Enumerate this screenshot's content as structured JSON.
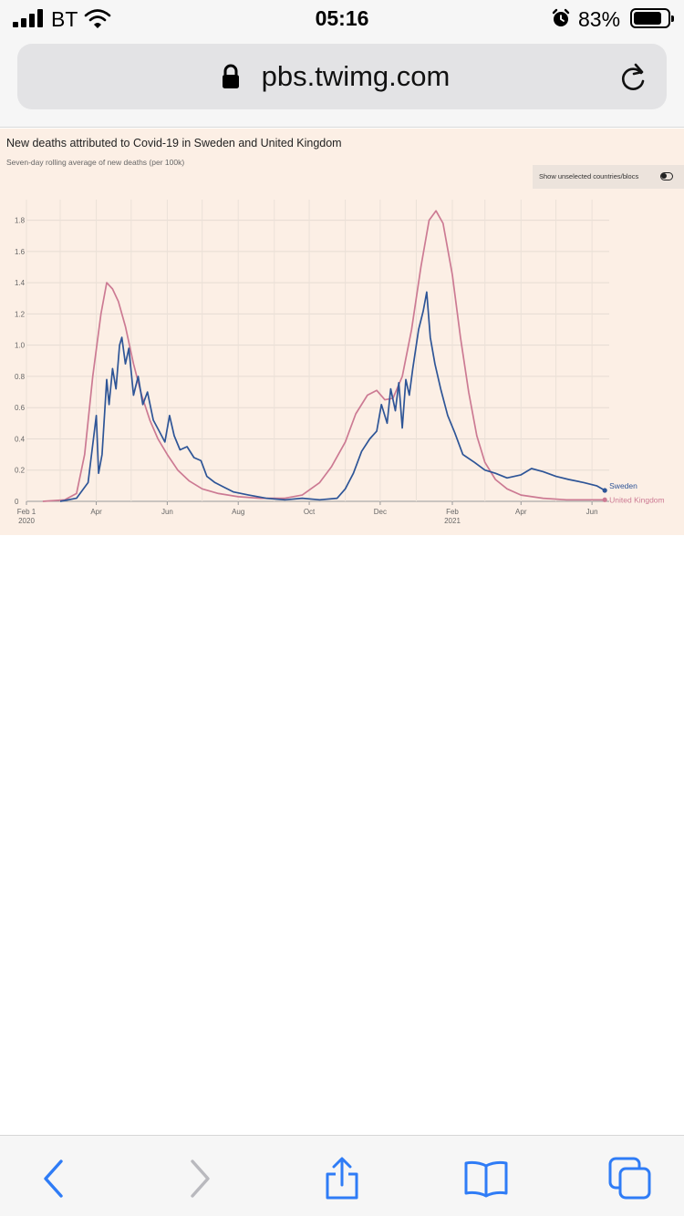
{
  "status_bar": {
    "carrier": "BT",
    "time": "05:16",
    "battery_percent": "83%",
    "battery_level": 0.83,
    "icons": [
      "signal-icon",
      "wifi-icon",
      "alarm-icon",
      "battery-icon"
    ]
  },
  "address_bar": {
    "url": "pbs.twimg.com",
    "icons": [
      "lock-icon",
      "reload-icon"
    ]
  },
  "toolbar": {
    "icons": [
      "back-icon",
      "forward-icon",
      "share-icon",
      "bookmarks-icon",
      "tabs-icon"
    ]
  },
  "chart": {
    "title": "New deaths attributed to Covid-19 in Sweden and United Kingdom",
    "subtitle": "Seven-day rolling average of new deaths (per 100k)",
    "toggle_label": "Show unselected countries/blocs",
    "colors": {
      "Sweden": "#2e5597",
      "United Kingdom": "#cc7a93"
    }
  },
  "chart_data": {
    "type": "line",
    "x_ticks": [
      {
        "date": "2020-02-01",
        "label": "Feb 1",
        "sub": "2020"
      },
      {
        "date": "2020-04-01",
        "label": "Apr",
        "sub": ""
      },
      {
        "date": "2020-06-01",
        "label": "Jun",
        "sub": ""
      },
      {
        "date": "2020-08-01",
        "label": "Aug",
        "sub": ""
      },
      {
        "date": "2020-10-01",
        "label": "Oct",
        "sub": ""
      },
      {
        "date": "2020-12-01",
        "label": "Dec",
        "sub": ""
      },
      {
        "date": "2021-02-01",
        "label": "Feb",
        "sub": "2021"
      },
      {
        "date": "2021-04-01",
        "label": "Apr",
        "sub": ""
      },
      {
        "date": "2021-06-01",
        "label": "Jun",
        "sub": ""
      }
    ],
    "y_ticks": [
      "1.8",
      "1.6",
      "1.4",
      "1.2",
      "1.0",
      "0.8",
      "0.6",
      "0.4",
      "0.2",
      "0"
    ],
    "ylim": [
      0,
      1.85
    ],
    "xlim": [
      "2020-02-01",
      "2021-06-20"
    ],
    "grid": true,
    "series": [
      {
        "name": "Sweden",
        "points": [
          [
            "2020-03-01",
            0
          ],
          [
            "2020-03-15",
            0.02
          ],
          [
            "2020-03-25",
            0.12
          ],
          [
            "2020-04-01",
            0.55
          ],
          [
            "2020-04-03",
            0.18
          ],
          [
            "2020-04-06",
            0.3
          ],
          [
            "2020-04-10",
            0.78
          ],
          [
            "2020-04-12",
            0.62
          ],
          [
            "2020-04-15",
            0.85
          ],
          [
            "2020-04-18",
            0.72
          ],
          [
            "2020-04-21",
            1.0
          ],
          [
            "2020-04-23",
            1.05
          ],
          [
            "2020-04-26",
            0.88
          ],
          [
            "2020-04-29",
            0.98
          ],
          [
            "2020-05-03",
            0.68
          ],
          [
            "2020-05-07",
            0.8
          ],
          [
            "2020-05-11",
            0.62
          ],
          [
            "2020-05-15",
            0.7
          ],
          [
            "2020-05-20",
            0.52
          ],
          [
            "2020-05-25",
            0.45
          ],
          [
            "2020-05-30",
            0.38
          ],
          [
            "2020-06-03",
            0.55
          ],
          [
            "2020-06-07",
            0.42
          ],
          [
            "2020-06-12",
            0.33
          ],
          [
            "2020-06-18",
            0.35
          ],
          [
            "2020-06-24",
            0.28
          ],
          [
            "2020-06-30",
            0.26
          ],
          [
            "2020-07-05",
            0.16
          ],
          [
            "2020-07-12",
            0.12
          ],
          [
            "2020-07-20",
            0.09
          ],
          [
            "2020-07-28",
            0.06
          ],
          [
            "2020-08-10",
            0.04
          ],
          [
            "2020-08-25",
            0.02
          ],
          [
            "2020-09-10",
            0.01
          ],
          [
            "2020-09-25",
            0.02
          ],
          [
            "2020-10-10",
            0.01
          ],
          [
            "2020-10-25",
            0.02
          ],
          [
            "2020-11-01",
            0.08
          ],
          [
            "2020-11-08",
            0.18
          ],
          [
            "2020-11-15",
            0.32
          ],
          [
            "2020-11-22",
            0.4
          ],
          [
            "2020-11-28",
            0.45
          ],
          [
            "2020-12-02",
            0.62
          ],
          [
            "2020-12-07",
            0.5
          ],
          [
            "2020-12-10",
            0.72
          ],
          [
            "2020-12-14",
            0.58
          ],
          [
            "2020-12-17",
            0.76
          ],
          [
            "2020-12-20",
            0.47
          ],
          [
            "2020-12-23",
            0.78
          ],
          [
            "2020-12-26",
            0.68
          ],
          [
            "2020-12-29",
            0.85
          ],
          [
            "2021-01-03",
            1.1
          ],
          [
            "2021-01-07",
            1.22
          ],
          [
            "2021-01-10",
            1.34
          ],
          [
            "2021-01-13",
            1.05
          ],
          [
            "2021-01-17",
            0.88
          ],
          [
            "2021-01-22",
            0.72
          ],
          [
            "2021-01-28",
            0.55
          ],
          [
            "2021-02-03",
            0.44
          ],
          [
            "2021-02-10",
            0.3
          ],
          [
            "2021-02-20",
            0.25
          ],
          [
            "2021-03-01",
            0.2
          ],
          [
            "2021-03-10",
            0.18
          ],
          [
            "2021-03-20",
            0.15
          ],
          [
            "2021-04-01",
            0.17
          ],
          [
            "2021-04-10",
            0.21
          ],
          [
            "2021-04-20",
            0.19
          ],
          [
            "2021-05-01",
            0.16
          ],
          [
            "2021-05-12",
            0.14
          ],
          [
            "2021-05-25",
            0.12
          ],
          [
            "2021-06-05",
            0.1
          ],
          [
            "2021-06-12",
            0.07
          ]
        ]
      },
      {
        "name": "United Kingdom",
        "points": [
          [
            "2020-02-15",
            0
          ],
          [
            "2020-03-05",
            0.01
          ],
          [
            "2020-03-15",
            0.05
          ],
          [
            "2020-03-22",
            0.3
          ],
          [
            "2020-03-29",
            0.8
          ],
          [
            "2020-04-05",
            1.2
          ],
          [
            "2020-04-10",
            1.4
          ],
          [
            "2020-04-15",
            1.36
          ],
          [
            "2020-04-20",
            1.28
          ],
          [
            "2020-04-26",
            1.12
          ],
          [
            "2020-05-03",
            0.88
          ],
          [
            "2020-05-10",
            0.68
          ],
          [
            "2020-05-17",
            0.52
          ],
          [
            "2020-05-24",
            0.4
          ],
          [
            "2020-06-01",
            0.3
          ],
          [
            "2020-06-10",
            0.2
          ],
          [
            "2020-06-20",
            0.13
          ],
          [
            "2020-07-01",
            0.08
          ],
          [
            "2020-07-15",
            0.05
          ],
          [
            "2020-08-01",
            0.03
          ],
          [
            "2020-08-20",
            0.02
          ],
          [
            "2020-09-10",
            0.02
          ],
          [
            "2020-09-25",
            0.04
          ],
          [
            "2020-10-10",
            0.12
          ],
          [
            "2020-10-20",
            0.22
          ],
          [
            "2020-11-01",
            0.38
          ],
          [
            "2020-11-10",
            0.56
          ],
          [
            "2020-11-20",
            0.68
          ],
          [
            "2020-11-28",
            0.71
          ],
          [
            "2020-12-05",
            0.65
          ],
          [
            "2020-12-12",
            0.66
          ],
          [
            "2020-12-20",
            0.8
          ],
          [
            "2020-12-28",
            1.1
          ],
          [
            "2021-01-05",
            1.5
          ],
          [
            "2021-01-12",
            1.8
          ],
          [
            "2021-01-18",
            1.86
          ],
          [
            "2021-01-24",
            1.78
          ],
          [
            "2021-02-01",
            1.45
          ],
          [
            "2021-02-08",
            1.05
          ],
          [
            "2021-02-15",
            0.7
          ],
          [
            "2021-02-22",
            0.42
          ],
          [
            "2021-03-01",
            0.25
          ],
          [
            "2021-03-10",
            0.14
          ],
          [
            "2021-03-20",
            0.08
          ],
          [
            "2021-04-01",
            0.04
          ],
          [
            "2021-04-20",
            0.02
          ],
          [
            "2021-05-10",
            0.01
          ],
          [
            "2021-06-12",
            0.01
          ]
        ]
      }
    ]
  }
}
